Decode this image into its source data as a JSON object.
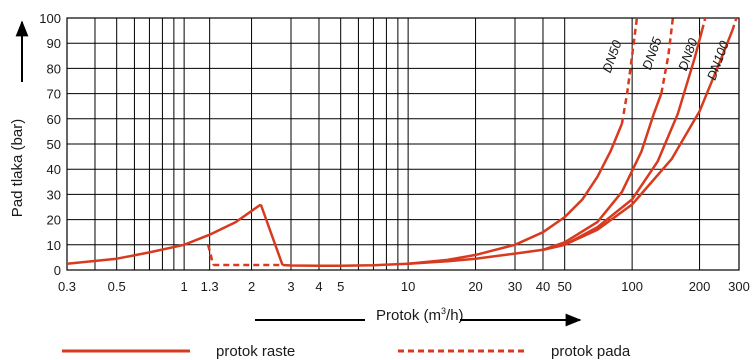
{
  "colors": {
    "curve": "#d73a1e",
    "grid": "#000000",
    "text": "#1a1a1a"
  },
  "chart_data": {
    "type": "line",
    "x_scale": "log",
    "xlim": [
      0.3,
      300
    ],
    "ylim": [
      0,
      100
    ],
    "grid": true,
    "legend_position": "bottom",
    "xlabel": {
      "prefix": "Protok (m",
      "sup": "3",
      "suffix": "/h)"
    },
    "ylabel": "Pad tlaka (bar)",
    "x_ticks": [
      {
        "v": 0.3,
        "label": "0.3"
      },
      {
        "v": 0.5,
        "label": "0.5"
      },
      {
        "v": 1,
        "label": "1"
      },
      {
        "v": 1.3,
        "label": "1.3"
      },
      {
        "v": 2,
        "label": "2"
      },
      {
        "v": 3,
        "label": "3"
      },
      {
        "v": 4,
        "label": "4"
      },
      {
        "v": 5,
        "label": "5"
      },
      {
        "v": 10,
        "label": "10"
      },
      {
        "v": 20,
        "label": "20"
      },
      {
        "v": 30,
        "label": "30"
      },
      {
        "v": 40,
        "label": "40"
      },
      {
        "v": 50,
        "label": "50"
      },
      {
        "v": 100,
        "label": "100"
      },
      {
        "v": 200,
        "label": "200"
      },
      {
        "v": 300,
        "label": "300"
      }
    ],
    "x_minor_lines": [
      0.4,
      0.6,
      0.7,
      0.8,
      0.9,
      6,
      7,
      8,
      9
    ],
    "y_ticks": [
      0,
      10,
      20,
      30,
      40,
      50,
      60,
      70,
      80,
      90,
      100
    ],
    "legend": [
      {
        "label": "protok raste",
        "style": "solid"
      },
      {
        "label": "protok pada",
        "style": "dashed"
      }
    ],
    "series": [
      {
        "style": "solid",
        "x": [
          0.3,
          0.5,
          0.7,
          1.0,
          1.3,
          1.7,
          2.2
        ],
        "y": [
          2.5,
          4.5,
          7,
          10,
          14,
          19,
          26
        ]
      },
      {
        "style": "solid",
        "x": [
          2.2,
          2.75
        ],
        "y": [
          26,
          2
        ]
      },
      {
        "style": "solid",
        "x": [
          2.75,
          3,
          4,
          5,
          7,
          10,
          15,
          20,
          30,
          40
        ],
        "y": [
          2,
          1.8,
          1.7,
          1.7,
          1.9,
          2.5,
          3.5,
          4.5,
          6.5,
          8
        ]
      },
      {
        "style": "dashed",
        "x": [
          1.28,
          1.35
        ],
        "y": [
          10,
          2
        ]
      },
      {
        "style": "dashed",
        "x": [
          1.35,
          2.75
        ],
        "y": [
          2,
          2
        ]
      },
      {
        "name": "DN50",
        "label": "DN50",
        "style": "solid",
        "x": [
          10,
          15,
          20,
          30,
          40,
          50,
          60,
          70,
          80,
          90
        ],
        "y": [
          2.5,
          4,
          6,
          10,
          15,
          21,
          28,
          37,
          47,
          58
        ]
      },
      {
        "style": "dashed",
        "x": [
          90,
          95,
          100,
          105
        ],
        "y": [
          58,
          70,
          85,
          100
        ]
      },
      {
        "name": "DN65",
        "label": "DN65",
        "style": "solid",
        "x": [
          40,
          50,
          70,
          90,
          110,
          125,
          135
        ],
        "y": [
          8,
          11,
          19,
          31,
          47,
          62,
          70
        ]
      },
      {
        "style": "dashed",
        "x": [
          135,
          145,
          152
        ],
        "y": [
          70,
          85,
          100
        ]
      },
      {
        "name": "DN80",
        "label": "DN80",
        "style": "solid",
        "x": [
          40,
          50,
          70,
          100,
          130,
          160,
          190,
          205
        ],
        "y": [
          8,
          10,
          17,
          28,
          43,
          62,
          84,
          95
        ]
      },
      {
        "style": "dashed",
        "x": [
          205,
          212
        ],
        "y": [
          95,
          100
        ]
      },
      {
        "name": "DN100",
        "label": "DN100",
        "style": "solid",
        "x": [
          40,
          50,
          70,
          100,
          150,
          200,
          250,
          280
        ],
        "y": [
          8,
          10,
          16,
          26,
          44,
          63,
          84,
          95
        ]
      },
      {
        "style": "dashed",
        "x": [
          280,
          292
        ],
        "y": [
          95,
          100
        ]
      }
    ]
  }
}
